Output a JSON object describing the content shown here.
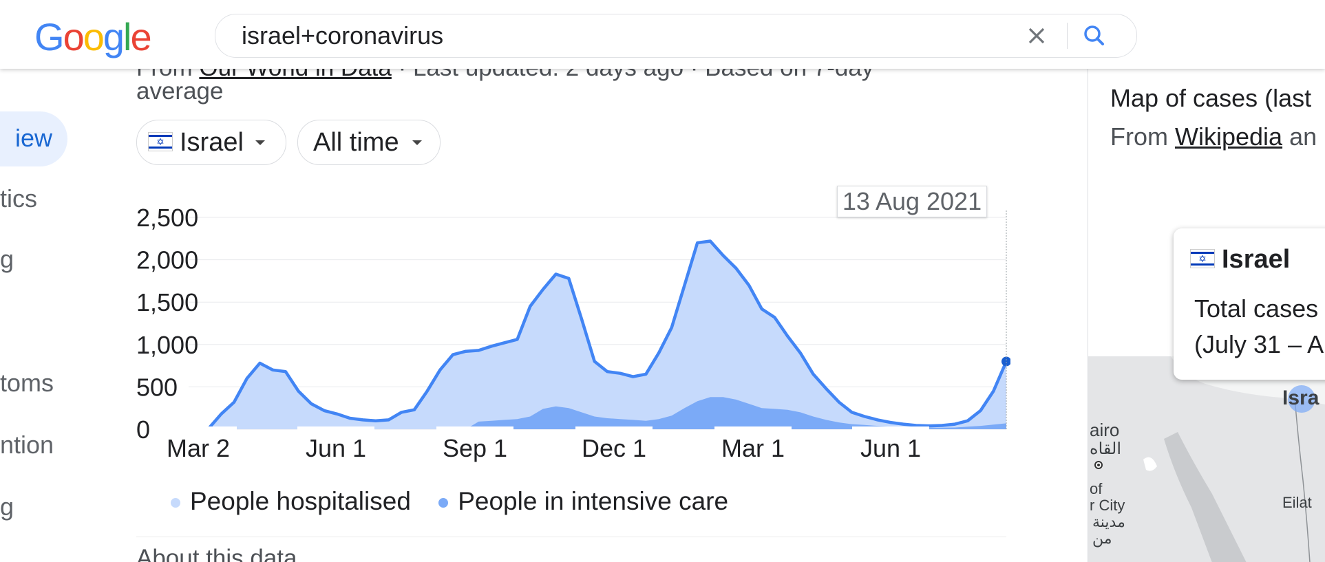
{
  "header": {
    "logo_letters": [
      {
        "ch": "G",
        "color": "#4285F4"
      },
      {
        "ch": "o",
        "color": "#EA4335"
      },
      {
        "ch": "o",
        "color": "#FBBC05"
      },
      {
        "ch": "g",
        "color": "#4285F4"
      },
      {
        "ch": "l",
        "color": "#34A853"
      },
      {
        "ch": "e",
        "color": "#EA4335"
      }
    ],
    "search_query": "israel+coronavirus",
    "clear_icon": "close-icon",
    "search_icon": "search-icon"
  },
  "left_nav": {
    "items": [
      {
        "label": "iew",
        "active": true
      },
      {
        "label": "tics"
      },
      {
        "label": "g"
      },
      {
        "label": "toms"
      },
      {
        "label": "ntion"
      },
      {
        "label": "g"
      }
    ]
  },
  "main": {
    "source_prefix": "From ",
    "source_link": "Our World in Data",
    "source_suffix": " · Last updated: 2 days ago · Based on 7-day",
    "source_line2": "average",
    "country_chip": "Israel",
    "time_chip": "All time",
    "about_text": "About this data"
  },
  "chart_data": {
    "type": "area",
    "hover_label": "13 Aug 2021",
    "y_ticks": [
      "2,500",
      "2,000",
      "1,500",
      "1,000",
      "500",
      "0"
    ],
    "x_ticks": [
      "Mar 2",
      "Jun 1",
      "Sep 1",
      "Dec 1",
      "Mar 1",
      "Jun 1"
    ],
    "ylim": [
      0,
      2500
    ],
    "grid": true,
    "legend_placement": "bottom",
    "series": [
      {
        "name": "People hospitalised",
        "color": "#c6dafc",
        "line_color": "#4285f4",
        "values": [
          0,
          5,
          180,
          320,
          600,
          780,
          700,
          680,
          450,
          300,
          220,
          180,
          130,
          110,
          100,
          110,
          200,
          230,
          450,
          700,
          880,
          920,
          930,
          980,
          1020,
          1060,
          1450,
          1650,
          1830,
          1780,
          1300,
          800,
          680,
          660,
          620,
          650,
          900,
          1200,
          1700,
          2200,
          2220,
          2050,
          1900,
          1700,
          1420,
          1320,
          1100,
          900,
          650,
          480,
          320,
          200,
          150,
          110,
          80,
          60,
          45,
          40,
          45,
          60,
          100,
          220,
          450,
          800
        ]
      },
      {
        "name": "People in intensive care",
        "color": "#7baaf7",
        "values": [
          0,
          0,
          0,
          0,
          0,
          0,
          0,
          0,
          0,
          0,
          0,
          0,
          0,
          0,
          0,
          0,
          0,
          0,
          0,
          0,
          0,
          0,
          90,
          100,
          110,
          120,
          150,
          240,
          270,
          250,
          200,
          150,
          130,
          120,
          110,
          100,
          120,
          160,
          250,
          330,
          380,
          380,
          350,
          300,
          250,
          240,
          230,
          200,
          150,
          110,
          80,
          60,
          50,
          40,
          30,
          25,
          20,
          18,
          18,
          20,
          30,
          40,
          55,
          70
        ]
      }
    ]
  },
  "right_panel": {
    "title": "Map of cases (last",
    "source_prefix": "From ",
    "source_link": "Wikipedia",
    "source_suffix": " an",
    "popup_country": "Israel",
    "popup_line1": "Total cases",
    "popup_line2": "(July 31 – A",
    "map_labels": {
      "cairo_en": "airo",
      "cairo_ar": "القاه",
      "city_of": "of",
      "city_en": "r City",
      "city_ar1": "مدينة",
      "city_ar2": "من",
      "eilat": "Eilat",
      "israel": "Isra"
    }
  }
}
